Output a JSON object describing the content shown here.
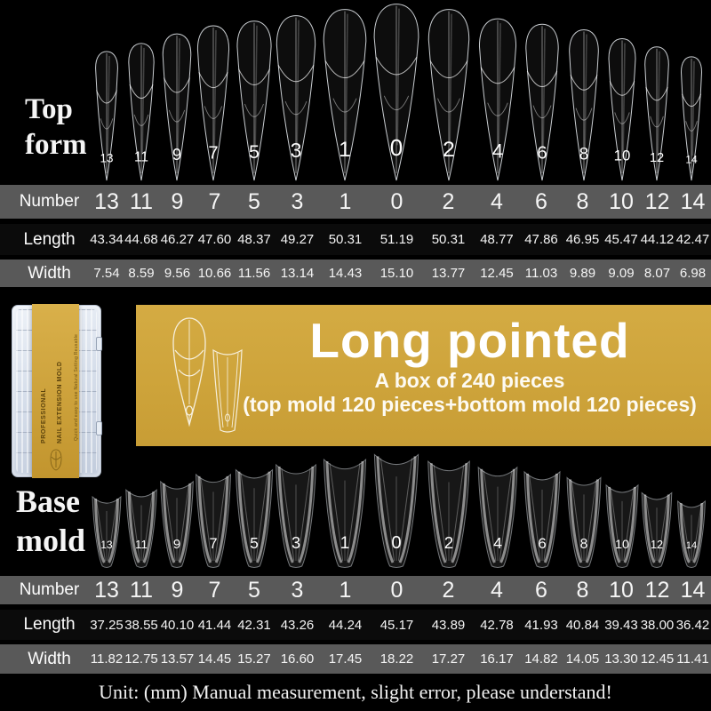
{
  "colors": {
    "background": "#000000",
    "row_gray": "#595959",
    "row_dark": "#0b0b0b",
    "banner_gold": "#cda33a",
    "text_white": "#ffffff"
  },
  "top_form": {
    "label": "Top form",
    "numbers": [
      "13",
      "11",
      "9",
      "7",
      "5",
      "3",
      "1",
      "0",
      "2",
      "4",
      "6",
      "8",
      "10",
      "12",
      "14"
    ]
  },
  "top_table": {
    "row_labels": [
      "Number",
      "Length",
      "Width"
    ],
    "numbers": [
      "13",
      "11",
      "9",
      "7",
      "5",
      "3",
      "1",
      "0",
      "2",
      "4",
      "6",
      "8",
      "10",
      "12",
      "14"
    ],
    "lengths": [
      "43.34",
      "44.68",
      "46.27",
      "47.60",
      "48.37",
      "49.27",
      "50.31",
      "51.19",
      "50.31",
      "48.77",
      "47.86",
      "46.95",
      "45.47",
      "44.12",
      "42.47"
    ],
    "widths": [
      "7.54",
      "8.59",
      "9.56",
      "10.66",
      "11.56",
      "13.14",
      "14.43",
      "15.10",
      "13.77",
      "12.45",
      "11.03",
      "9.89",
      "9.09",
      "8.07",
      "6.98"
    ]
  },
  "banner": {
    "title": "Long pointed",
    "line1": "A box of 240 pieces",
    "line2": "(top mold 120 pieces+bottom mold 120 pieces)"
  },
  "product_box": {
    "band_line1": "PROFESSIONAL",
    "band_line2": "NAIL EXTENSION MOLD",
    "band_sub": "Quick and easy to use  Natural Setting  Reusable"
  },
  "base_mold": {
    "label": "Base mold",
    "numbers": [
      "13",
      "11",
      "9",
      "7",
      "5",
      "3",
      "1",
      "0",
      "2",
      "4",
      "6",
      "8",
      "10",
      "12",
      "14"
    ]
  },
  "base_table": {
    "row_labels": [
      "Number",
      "Length",
      "Width"
    ],
    "numbers": [
      "13",
      "11",
      "9",
      "7",
      "5",
      "3",
      "1",
      "0",
      "2",
      "4",
      "6",
      "8",
      "10",
      "12",
      "14"
    ],
    "lengths": [
      "37.25",
      "38.55",
      "40.10",
      "41.44",
      "42.31",
      "43.26",
      "44.24",
      "45.17",
      "43.89",
      "42.78",
      "41.93",
      "40.84",
      "39.43",
      "38.00",
      "36.42"
    ],
    "widths": [
      "11.82",
      "12.75",
      "13.57",
      "14.45",
      "15.27",
      "16.60",
      "17.45",
      "18.22",
      "17.27",
      "16.17",
      "14.82",
      "14.05",
      "13.30",
      "12.45",
      "11.41"
    ]
  },
  "footer": {
    "note": "Unit: (mm) Manual measurement, slight error, please understand!"
  }
}
